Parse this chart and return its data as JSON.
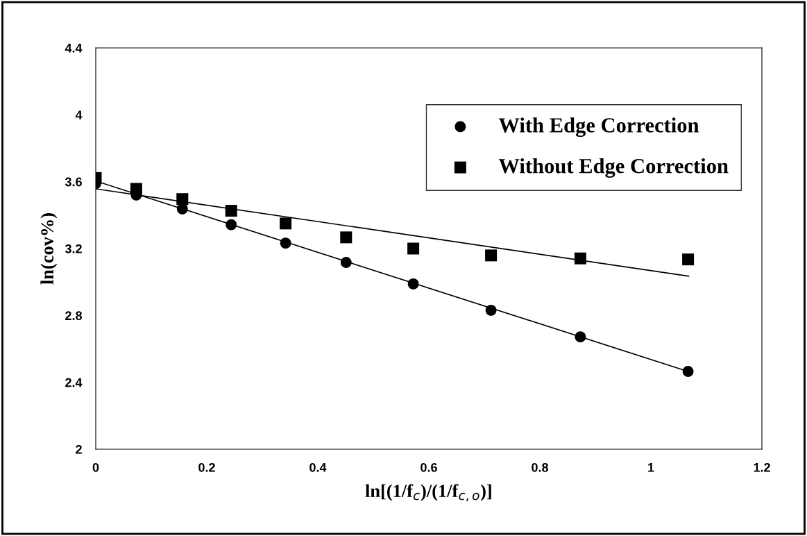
{
  "chart_data": {
    "type": "scatter",
    "xlabel": "ln[(1/f$_{c}$)/(1/f$_{c,o}$)]",
    "ylabel": "ln(cov%)",
    "xlim": [
      0,
      1.2
    ],
    "xticks": [
      0,
      0.2,
      0.4,
      0.6,
      0.8,
      1,
      1.2
    ],
    "ylim": [
      2,
      4.4
    ],
    "yticks": [
      2,
      2.4,
      2.8,
      3.2,
      3.6,
      4,
      4.4
    ],
    "grid": false,
    "legend": "top right",
    "series": [
      {
        "name": "With Edge Correction",
        "color": "#000000",
        "marker": "circle",
        "x": [
          0,
          0.073,
          0.156,
          0.244,
          0.342,
          0.451,
          0.572,
          0.712,
          0.873,
          1.067
        ],
        "values": [
          3.589,
          3.52,
          3.437,
          3.343,
          3.233,
          3.117,
          2.989,
          2.831,
          2.672,
          2.465
        ]
      },
      {
        "name": "Without Edge Correction",
        "color": "#000000",
        "marker": "square",
        "x": [
          0,
          0.073,
          0.156,
          0.244,
          0.342,
          0.451,
          0.572,
          0.712,
          0.873,
          1.067
        ],
        "values": [
          3.622,
          3.557,
          3.496,
          3.426,
          3.35,
          3.267,
          3.2,
          3.159,
          3.141,
          3.135
        ]
      },
      {
        "type": "line",
        "color": "#000000",
        "marker": "none",
        "x": [
          0,
          1.067
        ],
        "values": [
          3.604,
          2.465
        ]
      },
      {
        "type": "line",
        "color": "#000000",
        "marker": "none",
        "x": [
          0,
          1.068
        ],
        "values": [
          3.557,
          3.035
        ]
      }
    ]
  }
}
